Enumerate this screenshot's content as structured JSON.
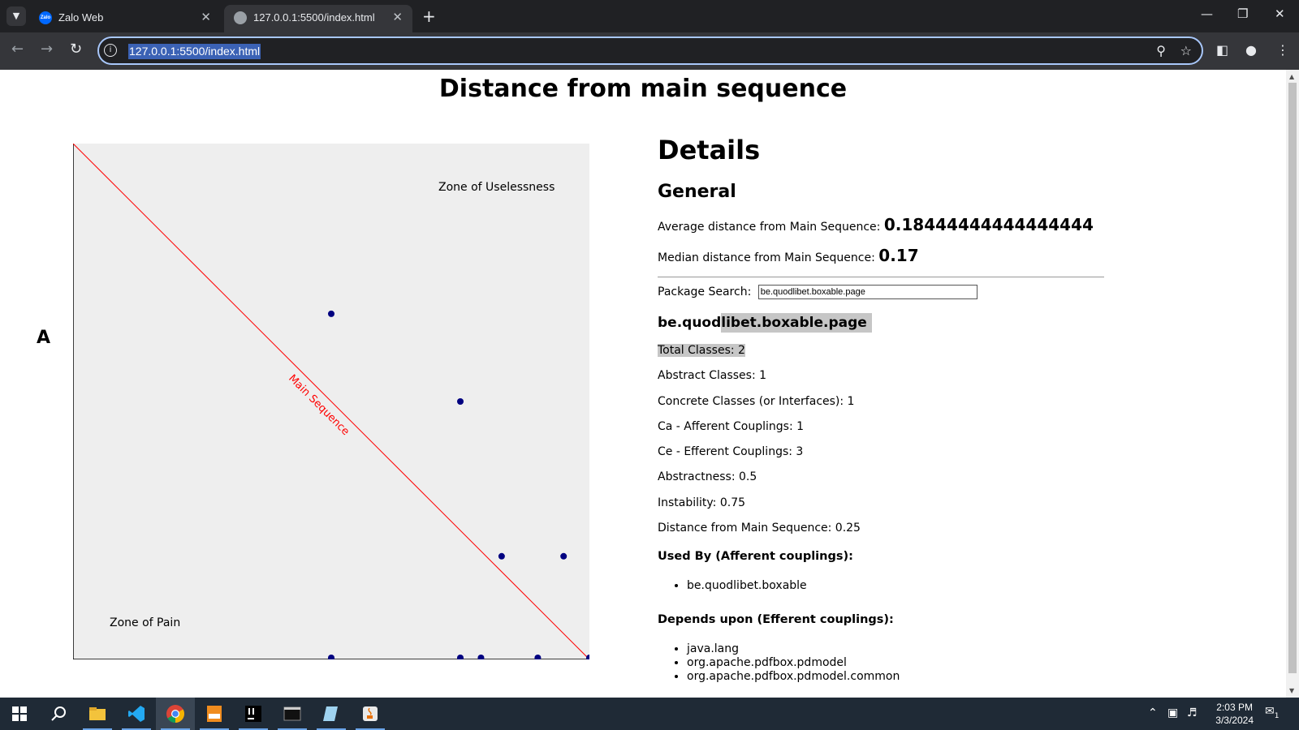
{
  "browser": {
    "tabs": [
      {
        "title": "Zalo Web",
        "favicon": "zalo-icon"
      },
      {
        "title": "127.0.0.1:5500/index.html",
        "favicon": "globe-icon",
        "active": true
      }
    ],
    "url": "127.0.0.1:5500/index.html"
  },
  "page": {
    "title": "Distance from main sequence",
    "axis_y_label": "A",
    "chart_data": {
      "type": "scatter",
      "title": "",
      "xlabel": "",
      "ylabel": "A",
      "xlim": [
        0,
        1
      ],
      "ylim": [
        0,
        1
      ],
      "grid": false,
      "annotations": [
        "Zone of Uselessness",
        "Zone of Pain",
        "Main Sequence"
      ],
      "main_sequence": {
        "from": [
          0,
          1
        ],
        "to": [
          1,
          0
        ],
        "color": "#ff0000"
      },
      "point_color": "#000080",
      "points": [
        {
          "x": 0.5,
          "y": 0.67
        },
        {
          "x": 0.75,
          "y": 0.5
        },
        {
          "x": 0.83,
          "y": 0.2
        },
        {
          "x": 0.95,
          "y": 0.2
        },
        {
          "x": 0.5,
          "y": 0.0
        },
        {
          "x": 0.75,
          "y": 0.0
        },
        {
          "x": 0.79,
          "y": 0.0
        },
        {
          "x": 0.9,
          "y": 0.0
        },
        {
          "x": 1.0,
          "y": 0.0
        }
      ]
    }
  },
  "details": {
    "title": "Details",
    "general_title": "General",
    "avg_label": "Average distance from Main Sequence:",
    "avg_value": "0.18444444444444444",
    "median_label": "Median distance from Main Sequence:",
    "median_value": "0.17",
    "search_label": "Package Search:",
    "search_value": "be.quodlibet.boxable.page",
    "package": {
      "name_prefix": "be.quod",
      "name_highlight": "libet.boxable.page",
      "total_classes": "Total Classes: 2",
      "abstract_classes": "Abstract Classes: 1",
      "concrete_classes": "Concrete Classes (or Interfaces): 1",
      "ca": "Ca - Afferent Couplings: 1",
      "ce": "Ce - Efferent Couplings: 3",
      "abstractness": "Abstractness: 0.5",
      "instability": "Instability: 0.75",
      "distance": "Distance from Main Sequence: 0.25",
      "used_by_title": "Used By (Afferent couplings):",
      "used_by": [
        "be.quodlibet.boxable"
      ],
      "depends_title": "Depends upon (Efferent couplings):",
      "depends": [
        "java.lang",
        "org.apache.pdfbox.pdmodel",
        "org.apache.pdfbox.pdmodel.common"
      ]
    }
  },
  "taskbar": {
    "apps": [
      "windows-start-icon",
      "search-icon",
      "file-explorer-icon",
      "vscode-icon",
      "chrome-icon",
      "pdf-icon",
      "intellij-icon",
      "terminal-icon",
      "notepad-icon",
      "java-icon"
    ],
    "time": "2:03 PM",
    "date": "3/3/2024",
    "notification_count": "1"
  }
}
